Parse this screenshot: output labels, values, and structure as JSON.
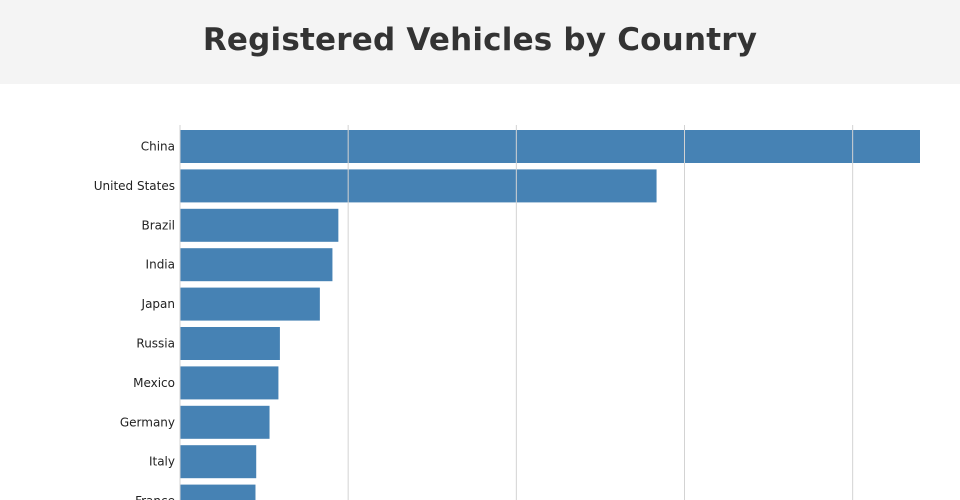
{
  "title": "Registered Vehicles by Country",
  "colors": {
    "bar": "#4682b4",
    "grid": "#d3d3d3",
    "header_bg": "#f4f4f4"
  },
  "chart_data": {
    "type": "bar",
    "orientation": "horizontal",
    "title": "Registered Vehicles by Country",
    "xlabel": "",
    "ylabel": "",
    "grid": true,
    "xlim": [
      0,
      1
    ],
    "categories": [
      "China",
      "United States",
      "Brazil",
      "India",
      "Japan",
      "Russia",
      "Mexico",
      "Germany",
      "Italy",
      "France"
    ],
    "values": [
      1.0,
      0.644,
      0.214,
      0.206,
      0.189,
      0.135,
      0.133,
      0.121,
      0.103,
      0.102
    ]
  }
}
